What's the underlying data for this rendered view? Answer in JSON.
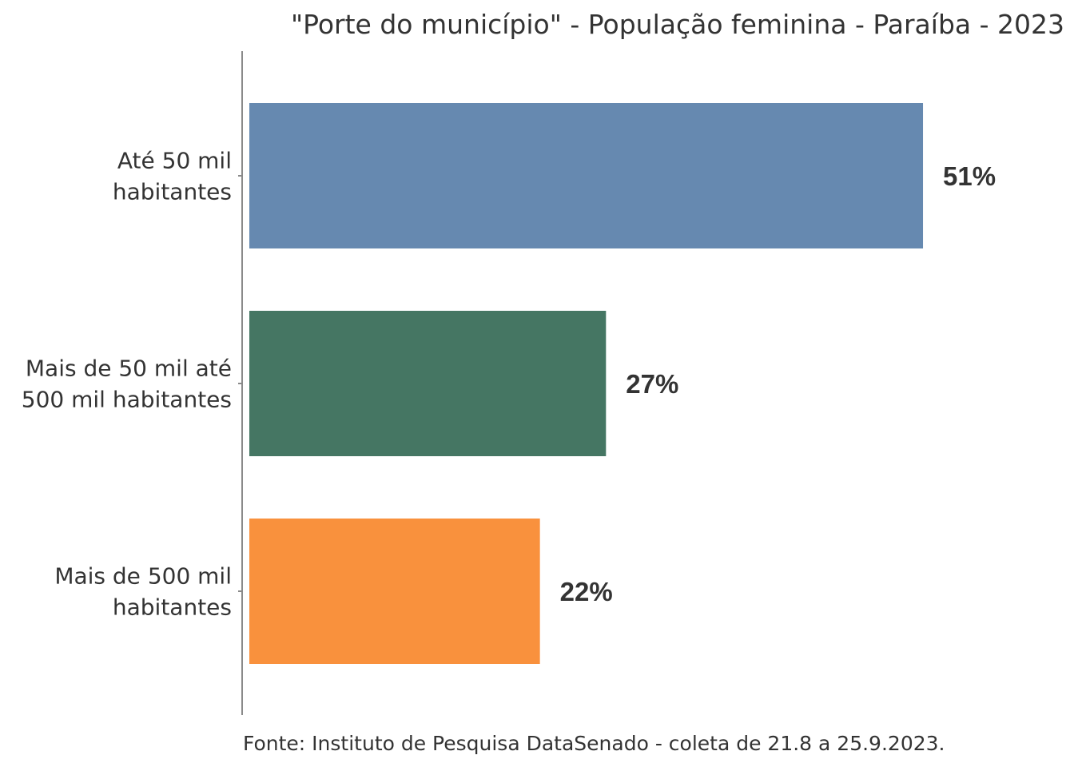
{
  "chart_data": {
    "type": "bar",
    "orientation": "horizontal",
    "title": "\"Porte do município\" - População feminina - Paraíba - 2023",
    "categories": [
      [
        "Até 50 mil",
        "habitantes"
      ],
      [
        "Mais de 50 mil até",
        "500 mil habitantes"
      ],
      [
        "Mais de 500 mil",
        "habitantes"
      ]
    ],
    "values": [
      51,
      27,
      22
    ],
    "value_labels": [
      "51%",
      "27%",
      "22%"
    ],
    "colors": [
      "#6689b0",
      "#457663",
      "#f9913d"
    ],
    "xlim": [
      0,
      100
    ],
    "grid": false,
    "legend": "none",
    "source": "Fonte: Instituto de Pesquisa DataSenado - coleta de 21.8 a 25.9.2023."
  }
}
